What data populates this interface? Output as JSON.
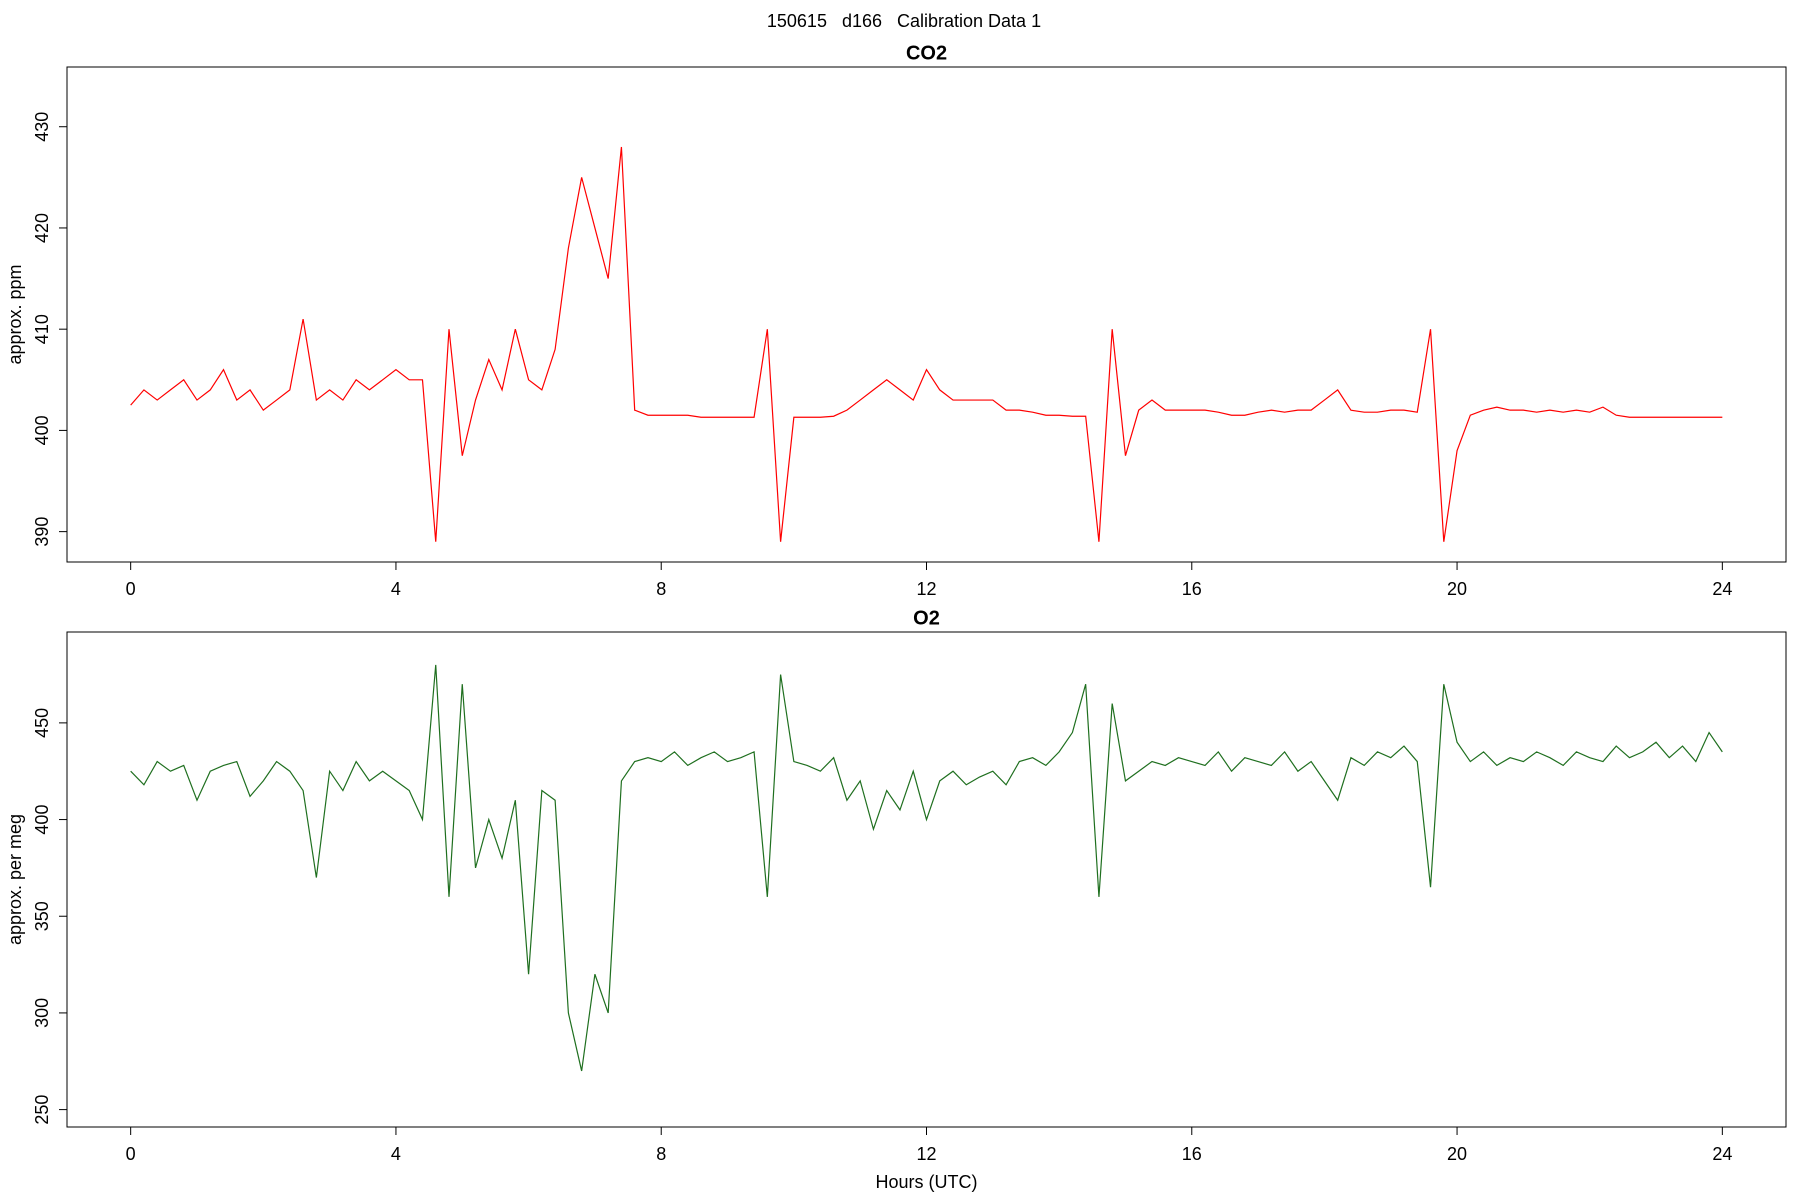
{
  "title": "150615   d166   Calibration Data 1",
  "chart_data": [
    {
      "type": "line",
      "title": "CO2",
      "ylabel": "approx. ppm",
      "color": "#ff0000",
      "xlim": [
        -0.96,
        24.96
      ],
      "xticks": [
        0,
        4,
        8,
        12,
        16,
        20,
        24
      ],
      "ylim": [
        387,
        435.9
      ],
      "yticks": [
        390,
        400,
        410,
        420,
        430
      ],
      "x": [
        0,
        0.2,
        0.4,
        0.6,
        0.8,
        1,
        1.2,
        1.4,
        1.6,
        1.8,
        2,
        2.2,
        2.4,
        2.6,
        2.8,
        3,
        3.2,
        3.4,
        3.6,
        3.8,
        4,
        4.2,
        4.4,
        4.6,
        4.8,
        5,
        5.2,
        5.4,
        5.6,
        5.8,
        6,
        6.2,
        6.4,
        6.6,
        6.8,
        7,
        7.2,
        7.4,
        7.6,
        7.8,
        8,
        8.2,
        8.4,
        8.6,
        8.8,
        9,
        9.2,
        9.4,
        9.6,
        9.8,
        10,
        10.2,
        10.4,
        10.6,
        10.8,
        11,
        11.2,
        11.4,
        11.6,
        11.8,
        12,
        12.2,
        12.4,
        12.6,
        12.8,
        13,
        13.2,
        13.4,
        13.6,
        13.8,
        14,
        14.2,
        14.4,
        14.6,
        14.8,
        15,
        15.2,
        15.4,
        15.6,
        15.8,
        16,
        16.2,
        16.4,
        16.6,
        16.8,
        17,
        17.2,
        17.4,
        17.6,
        17.8,
        18,
        18.2,
        18.4,
        18.6,
        18.8,
        19,
        19.2,
        19.4,
        19.6,
        19.8,
        20,
        20.2,
        20.4,
        20.6,
        20.8,
        21,
        21.2,
        21.4,
        21.6,
        21.8,
        22,
        22.2,
        22.4,
        22.6,
        22.8,
        23,
        23.2,
        23.4,
        23.6,
        23.8,
        24
      ],
      "values": [
        402.5,
        404,
        403,
        404,
        405,
        403,
        404,
        406,
        403,
        404,
        402,
        403,
        404,
        411,
        403,
        404,
        403,
        405,
        404,
        405,
        406,
        405,
        405,
        389,
        410,
        397.5,
        403,
        407,
        404,
        410,
        405,
        404,
        408,
        418,
        425,
        420,
        415,
        428,
        402,
        401.5,
        401.5,
        401.5,
        401.5,
        401.3,
        401.3,
        401.3,
        401.3,
        401.3,
        410,
        389,
        401.3,
        401.3,
        401.3,
        401.4,
        402,
        403,
        404,
        405,
        404,
        403,
        406,
        404,
        403,
        403,
        403,
        403,
        402,
        402,
        401.8,
        401.5,
        401.5,
        401.4,
        401.4,
        389,
        410,
        397.5,
        402,
        403,
        402,
        402,
        402,
        402,
        401.8,
        401.5,
        401.5,
        401.8,
        402,
        401.8,
        402,
        402,
        403,
        404,
        402,
        401.8,
        401.8,
        402,
        402,
        401.8,
        410,
        389,
        398,
        401.5,
        402,
        402.3,
        402,
        402,
        401.8,
        402,
        401.8,
        402,
        401.8,
        402.3,
        401.5,
        401.3,
        401.3,
        401.3,
        401.3,
        401.3,
        401.3,
        401.3,
        401.3
      ]
    },
    {
      "type": "line",
      "title": "O2",
      "ylabel": "approx. per meg",
      "xlabel": "Hours (UTC)",
      "color": "#1f6f1f",
      "xlim": [
        -0.96,
        24.96
      ],
      "xticks": [
        0,
        4,
        8,
        12,
        16,
        20,
        24
      ],
      "ylim": [
        241,
        497
      ],
      "yticks": [
        250,
        300,
        350,
        400,
        450
      ],
      "x": [
        0,
        0.2,
        0.4,
        0.6,
        0.8,
        1,
        1.2,
        1.4,
        1.6,
        1.8,
        2,
        2.2,
        2.4,
        2.6,
        2.8,
        3,
        3.2,
        3.4,
        3.6,
        3.8,
        4,
        4.2,
        4.4,
        4.6,
        4.8,
        5,
        5.2,
        5.4,
        5.6,
        5.8,
        6,
        6.2,
        6.4,
        6.6,
        6.8,
        7,
        7.2,
        7.4,
        7.6,
        7.8,
        8,
        8.2,
        8.4,
        8.6,
        8.8,
        9,
        9.2,
        9.4,
        9.6,
        9.8,
        10,
        10.2,
        10.4,
        10.6,
        10.8,
        11,
        11.2,
        11.4,
        11.6,
        11.8,
        12,
        12.2,
        12.4,
        12.6,
        12.8,
        13,
        13.2,
        13.4,
        13.6,
        13.8,
        14,
        14.2,
        14.4,
        14.6,
        14.8,
        15,
        15.2,
        15.4,
        15.6,
        15.8,
        16,
        16.2,
        16.4,
        16.6,
        16.8,
        17,
        17.2,
        17.4,
        17.6,
        17.8,
        18,
        18.2,
        18.4,
        18.6,
        18.8,
        19,
        19.2,
        19.4,
        19.6,
        19.8,
        20,
        20.2,
        20.4,
        20.6,
        20.8,
        21,
        21.2,
        21.4,
        21.6,
        21.8,
        22,
        22.2,
        22.4,
        22.6,
        22.8,
        23,
        23.2,
        23.4,
        23.6,
        23.8,
        24
      ],
      "values": [
        425,
        418,
        430,
        425,
        428,
        410,
        425,
        428,
        430,
        412,
        420,
        430,
        425,
        415,
        370,
        425,
        415,
        430,
        420,
        425,
        420,
        415,
        400,
        480,
        360,
        470,
        375,
        400,
        380,
        410,
        320,
        415,
        410,
        300,
        270,
        320,
        300,
        420,
        430,
        432,
        430,
        435,
        428,
        432,
        435,
        430,
        432,
        435,
        360,
        475,
        430,
        428,
        425,
        432,
        410,
        420,
        395,
        415,
        405,
        425,
        400,
        420,
        425,
        418,
        422,
        425,
        418,
        430,
        432,
        428,
        435,
        445,
        470,
        360,
        460,
        420,
        425,
        430,
        428,
        432,
        430,
        428,
        435,
        425,
        432,
        430,
        428,
        435,
        425,
        430,
        420,
        410,
        432,
        428,
        435,
        432,
        438,
        430,
        365,
        470,
        440,
        430,
        435,
        428,
        432,
        430,
        435,
        432,
        428,
        435,
        432,
        430,
        438,
        432,
        435,
        440,
        432,
        438,
        430,
        445,
        435
      ]
    }
  ]
}
